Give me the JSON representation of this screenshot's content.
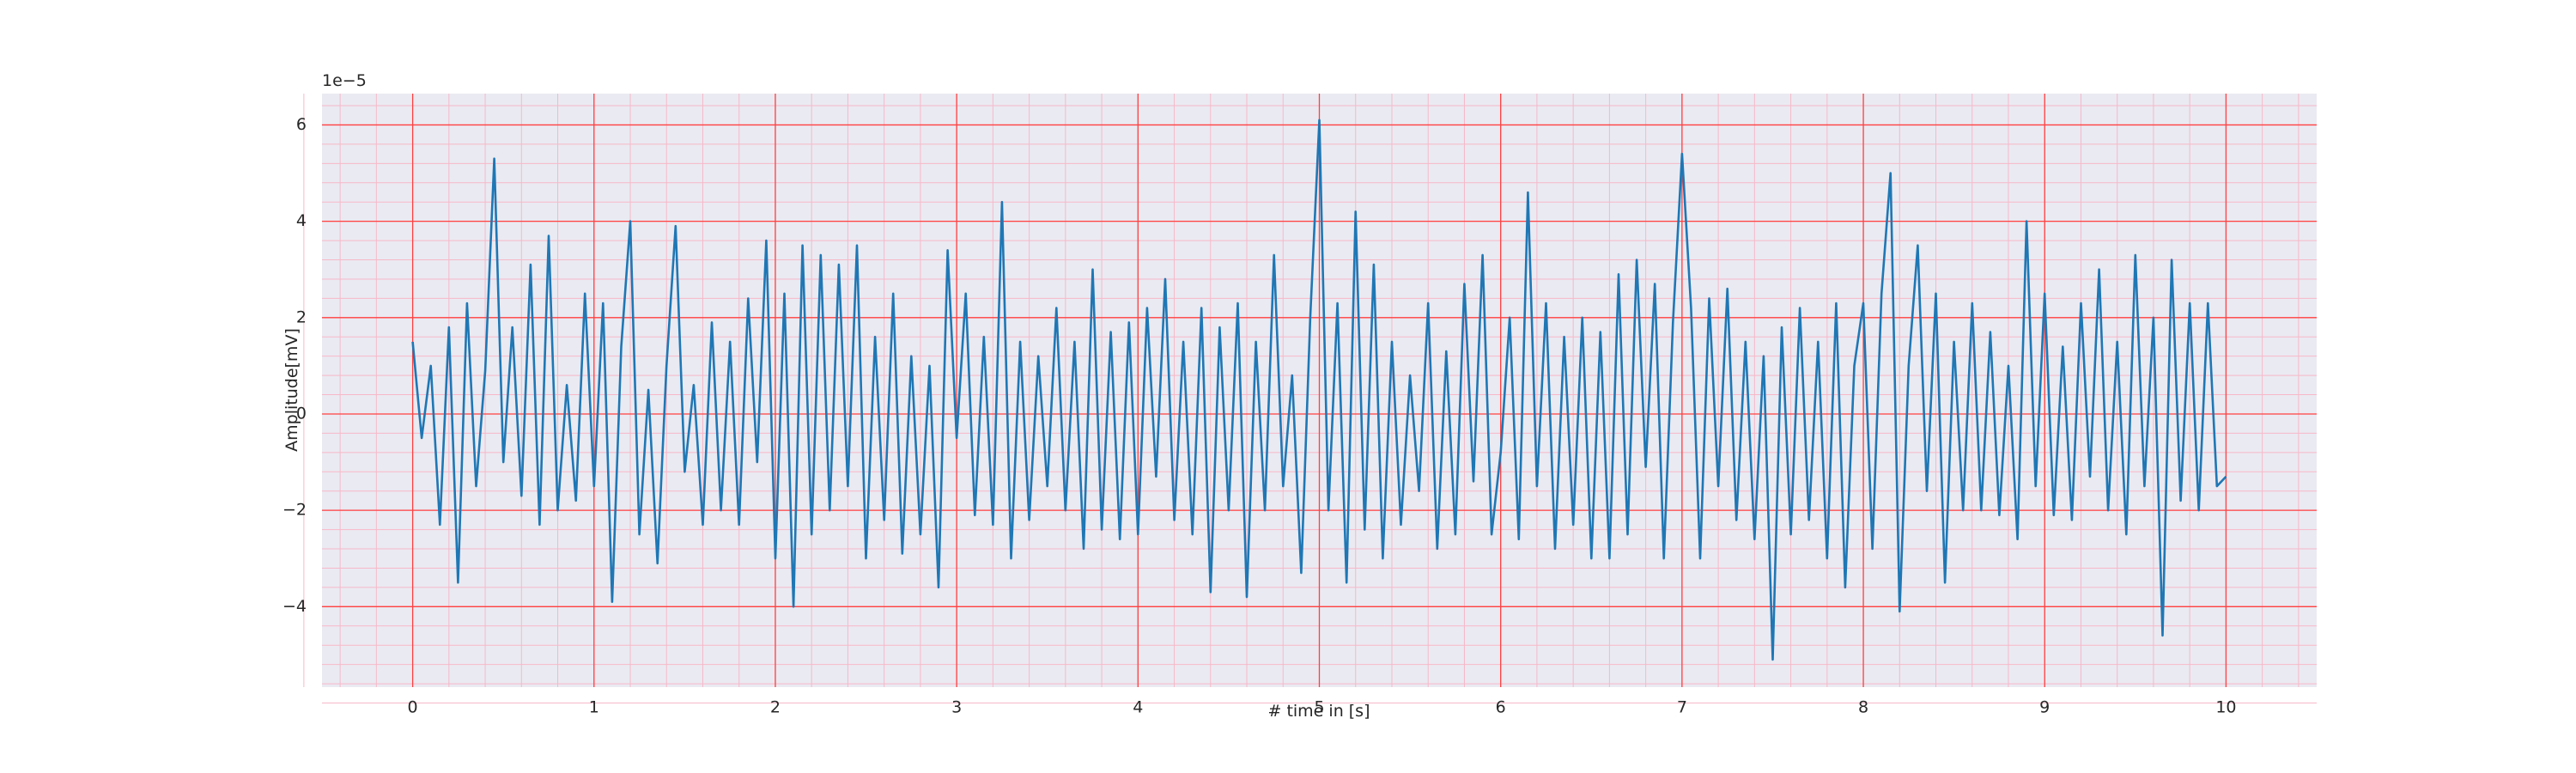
{
  "chart_data": {
    "type": "line",
    "xlabel": "# time in [s]",
    "ylabel": "Amplitude[mV]",
    "y_offset_label": "1e−5",
    "xlim": [
      -0.5,
      10.5
    ],
    "ylim": [
      -5.67,
      6.65
    ],
    "xticks": [
      0,
      1,
      2,
      3,
      4,
      5,
      6,
      7,
      8,
      9,
      10
    ],
    "yticks": [
      {
        "value": -4,
        "label": "−4"
      },
      {
        "value": -2,
        "label": "−2"
      },
      0,
      2,
      4,
      6
    ],
    "grid": true,
    "grid_color": "#ff4040",
    "minor_grid": true,
    "minor_grid_color": "#f7b8c8",
    "minor_divisions": 5,
    "background": "#eaeaf2",
    "x": [
      0,
      0.05,
      0.1,
      0.15,
      0.2,
      0.25,
      0.3,
      0.35,
      0.4,
      0.45,
      0.5,
      0.55,
      0.6,
      0.65,
      0.7,
      0.75,
      0.8,
      0.85,
      0.9,
      0.95,
      1,
      1.05,
      1.1,
      1.15,
      1.2,
      1.25,
      1.3,
      1.35,
      1.4,
      1.45,
      1.5,
      1.55,
      1.6,
      1.65,
      1.7,
      1.75,
      1.8,
      1.85,
      1.9,
      1.95,
      2,
      2.05,
      2.1,
      2.15,
      2.2,
      2.25,
      2.3,
      2.35,
      2.4,
      2.45,
      2.5,
      2.55,
      2.6,
      2.65,
      2.7,
      2.75,
      2.8,
      2.85,
      2.9,
      2.95,
      3,
      3.05,
      3.1,
      3.15,
      3.2,
      3.25,
      3.3,
      3.35,
      3.4,
      3.45,
      3.5,
      3.55,
      3.6,
      3.65,
      3.7,
      3.75,
      3.8,
      3.85,
      3.9,
      3.95,
      4,
      4.05,
      4.1,
      4.15,
      4.2,
      4.25,
      4.3,
      4.35,
      4.4,
      4.45,
      4.5,
      4.55,
      4.6,
      4.65,
      4.7,
      4.75,
      4.8,
      4.85,
      4.9,
      4.95,
      5,
      5.05,
      5.1,
      5.15,
      5.2,
      5.25,
      5.3,
      5.35,
      5.4,
      5.45,
      5.5,
      5.55,
      5.6,
      5.65,
      5.7,
      5.75,
      5.8,
      5.85,
      5.9,
      5.95,
      6,
      6.05,
      6.1,
      6.15,
      6.2,
      6.25,
      6.3,
      6.35,
      6.4,
      6.45,
      6.5,
      6.55,
      6.6,
      6.65,
      6.7,
      6.75,
      6.8,
      6.85,
      6.9,
      6.95,
      7,
      7.05,
      7.1,
      7.15,
      7.2,
      7.25,
      7.3,
      7.35,
      7.4,
      7.45,
      7.5,
      7.55,
      7.6,
      7.65,
      7.7,
      7.75,
      7.8,
      7.85,
      7.9,
      7.95,
      8,
      8.05,
      8.1,
      8.15,
      8.2,
      8.25,
      8.3,
      8.35,
      8.4,
      8.45,
      8.5,
      8.55,
      8.6,
      8.65,
      8.7,
      8.75,
      8.8,
      8.85,
      8.9,
      8.95,
      9,
      9.05,
      9.1,
      9.15,
      9.2,
      9.25,
      9.3,
      9.35,
      9.4,
      9.45,
      9.5,
      9.55,
      9.6,
      9.65,
      9.7,
      9.75,
      9.8,
      9.85,
      9.9,
      9.95,
      10
    ],
    "series": [
      {
        "color": "#1f77b4",
        "values": [
          1.5,
          -0.5,
          1.0,
          -2.3,
          1.8,
          -3.5,
          2.3,
          -1.5,
          0.9,
          5.3,
          -1.0,
          1.8,
          -1.7,
          3.1,
          -2.3,
          3.7,
          -2.0,
          0.6,
          -1.8,
          2.5,
          -1.5,
          2.3,
          -3.9,
          1.4,
          4.0,
          -2.5,
          0.5,
          -3.1,
          1.0,
          3.9,
          -1.2,
          0.6,
          -2.3,
          1.9,
          -2.0,
          1.5,
          -2.3,
          2.4,
          -1.0,
          3.6,
          -3.0,
          2.5,
          -4.0,
          3.5,
          -2.5,
          3.3,
          -2.0,
          3.1,
          -1.5,
          3.5,
          -3.0,
          1.6,
          -2.2,
          2.5,
          -2.9,
          1.2,
          -2.5,
          1.0,
          -3.6,
          3.4,
          -0.5,
          2.5,
          -2.1,
          1.6,
          -2.3,
          4.4,
          -3.0,
          1.5,
          -2.2,
          1.2,
          -1.5,
          2.2,
          -2.0,
          1.5,
          -2.8,
          3.0,
          -2.4,
          1.7,
          -2.6,
          1.9,
          -2.5,
          2.2,
          -1.3,
          2.8,
          -2.2,
          1.5,
          -2.5,
          2.2,
          -3.7,
          1.8,
          -2.0,
          2.3,
          -3.8,
          1.5,
          -2.0,
          3.3,
          -1.5,
          0.8,
          -3.3,
          2.0,
          6.1,
          -2.0,
          2.3,
          -3.5,
          4.2,
          -2.4,
          3.1,
          -3.0,
          1.5,
          -2.3,
          0.8,
          -1.6,
          2.3,
          -2.8,
          1.3,
          -2.5,
          2.7,
          -1.4,
          3.3,
          -2.5,
          -0.8,
          2.0,
          -2.6,
          4.6,
          -1.5,
          2.3,
          -2.8,
          1.6,
          -2.3,
          2.0,
          -3.0,
          1.7,
          -3.0,
          2.9,
          -2.5,
          3.2,
          -1.1,
          2.7,
          -3.0,
          1.9,
          5.4,
          2.2,
          -3.0,
          2.4,
          -1.5,
          2.6,
          -2.2,
          1.5,
          -2.6,
          1.2,
          -5.1,
          1.8,
          -2.5,
          2.2,
          -2.2,
          1.5,
          -3.0,
          2.3,
          -3.6,
          1.0,
          2.3,
          -2.8,
          2.5,
          5.0,
          -4.1,
          1.0,
          3.5,
          -1.6,
          2.5,
          -3.5,
          1.5,
          -2.0,
          2.3,
          -2.0,
          1.7,
          -2.1,
          1.0,
          -2.6,
          4.0,
          -1.5,
          2.5,
          -2.1,
          1.4,
          -2.2,
          2.3,
          -1.3,
          3.0,
          -2.0,
          1.5,
          -2.5,
          3.3,
          -1.5,
          2.0,
          -4.6,
          3.2,
          -1.8,
          2.3,
          -2.0,
          2.3,
          -1.5,
          -1.3
        ]
      }
    ]
  }
}
